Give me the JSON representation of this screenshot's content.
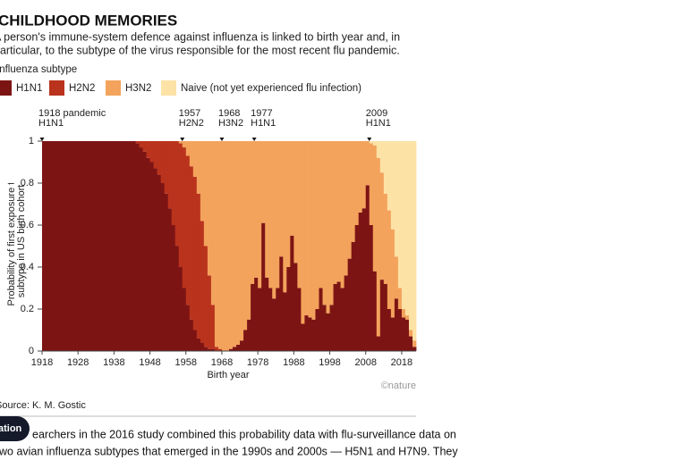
{
  "page": {
    "title": "CHILDHOOD MEMORIES",
    "subtitle": [
      "A person's immune-system defence against influenza is linked to birth year and, in",
      "particular, to the subtype of the virus responsible for the most recent flu pandemic."
    ],
    "legend_title": "Influenza subtype",
    "source": "Source: K. M. Gostic",
    "credit": "©nature",
    "button": "ation",
    "body": [
      "earchers in the 2016 study combined this probability data with flu-surveillance data on",
      "wo avian influenza subtypes that emerged in the 1990s and 2000s — H5N1 and H7N9. They"
    ]
  },
  "chart_data": {
    "type": "stacked-step-area",
    "xlabel": "Birth year",
    "ylabel": [
      "Probability of first exposure to",
      "subtype in US birth cohort"
    ],
    "x": [
      1918,
      1919,
      1920,
      1921,
      1922,
      1923,
      1924,
      1925,
      1926,
      1927,
      1928,
      1929,
      1930,
      1931,
      1932,
      1933,
      1934,
      1935,
      1936,
      1937,
      1938,
      1939,
      1940,
      1941,
      1942,
      1943,
      1944,
      1945,
      1946,
      1947,
      1948,
      1949,
      1950,
      1951,
      1952,
      1953,
      1954,
      1955,
      1956,
      1957,
      1958,
      1959,
      1960,
      1961,
      1962,
      1963,
      1964,
      1965,
      1966,
      1967,
      1968,
      1969,
      1970,
      1971,
      1972,
      1973,
      1974,
      1975,
      1976,
      1977,
      1978,
      1979,
      1980,
      1981,
      1982,
      1983,
      1984,
      1985,
      1986,
      1987,
      1988,
      1989,
      1990,
      1991,
      1992,
      1993,
      1994,
      1995,
      1996,
      1997,
      1998,
      1999,
      2000,
      2001,
      2002,
      2003,
      2004,
      2005,
      2006,
      2007,
      2008,
      2009,
      2010,
      2011,
      2012,
      2013,
      2014,
      2015,
      2016,
      2017,
      2018,
      2019,
      2020,
      2021
    ],
    "series": [
      {
        "name": "H1N1",
        "color": "#7d1414",
        "values": [
          1,
          1,
          1,
          1,
          1,
          1,
          1,
          1,
          1,
          1,
          1,
          1,
          1,
          1,
          1,
          1,
          1,
          1,
          1,
          1,
          1,
          1,
          1,
          1,
          1,
          1,
          0.99,
          0.97,
          0.95,
          0.92,
          0.9,
          0.87,
          0.84,
          0.8,
          0.75,
          0.68,
          0.6,
          0.5,
          0.4,
          0.3,
          0.22,
          0.15,
          0.1,
          0.06,
          0.04,
          0.02,
          0.01,
          0.01,
          0,
          0,
          0,
          0,
          0.01,
          0.02,
          0.03,
          0.05,
          0.1,
          0.15,
          0.32,
          0.35,
          0.3,
          0.61,
          0.35,
          0.3,
          0.25,
          0.3,
          0.45,
          0.28,
          0.4,
          0.55,
          0.42,
          0.3,
          0.13,
          0.17,
          0.16,
          0.15,
          0.2,
          0.3,
          0.22,
          0.18,
          0.22,
          0.32,
          0.33,
          0.3,
          0.36,
          0.44,
          0.52,
          0.6,
          0.66,
          0.68,
          0.79,
          0.6,
          0.38,
          0.07,
          0.34,
          0.32,
          0.2,
          0.16,
          0.25,
          0.2,
          0.16,
          0.15,
          0.07,
          0.02
        ]
      },
      {
        "name": "H2N2",
        "color": "#b9331d",
        "values": [
          0,
          0,
          0,
          0,
          0,
          0,
          0,
          0,
          0,
          0,
          0,
          0,
          0,
          0,
          0,
          0,
          0,
          0,
          0,
          0,
          0,
          0,
          0,
          0,
          0,
          0,
          0.01,
          0.03,
          0.05,
          0.08,
          0.1,
          0.13,
          0.16,
          0.2,
          0.25,
          0.32,
          0.4,
          0.5,
          0.59,
          0.67,
          0.71,
          0.73,
          0.73,
          0.69,
          0.58,
          0.48,
          0.35,
          0.21,
          0.02,
          0.01,
          0,
          0,
          0,
          0,
          0,
          0,
          0,
          0,
          0,
          0,
          0,
          0,
          0,
          0,
          0,
          0,
          0,
          0,
          0,
          0,
          0,
          0,
          0,
          0,
          0,
          0,
          0,
          0,
          0,
          0,
          0,
          0,
          0,
          0,
          0,
          0,
          0,
          0,
          0,
          0,
          0,
          0,
          0,
          0,
          0,
          0,
          0,
          0,
          0,
          0,
          0,
          0,
          0,
          0
        ]
      },
      {
        "name": "H3N2",
        "color": "#f3a35c",
        "values": [
          0,
          0,
          0,
          0,
          0,
          0,
          0,
          0,
          0,
          0,
          0,
          0,
          0,
          0,
          0,
          0,
          0,
          0,
          0,
          0,
          0,
          0,
          0,
          0,
          0,
          0,
          0,
          0,
          0,
          0,
          0,
          0,
          0,
          0,
          0,
          0,
          0,
          0,
          0.01,
          0.03,
          0.07,
          0.12,
          0.17,
          0.25,
          0.38,
          0.5,
          0.64,
          0.78,
          0.98,
          0.99,
          1,
          1,
          0.99,
          0.98,
          0.97,
          0.95,
          0.9,
          0.85,
          0.68,
          0.65,
          0.7,
          0.39,
          0.65,
          0.7,
          0.75,
          0.7,
          0.55,
          0.72,
          0.6,
          0.45,
          0.58,
          0.7,
          0.87,
          0.83,
          0.84,
          0.85,
          0.8,
          0.7,
          0.78,
          0.82,
          0.78,
          0.68,
          0.67,
          0.7,
          0.64,
          0.56,
          0.48,
          0.4,
          0.34,
          0.32,
          0.21,
          0.39,
          0.6,
          0.85,
          0.51,
          0.43,
          0.47,
          0.42,
          0.2,
          0.1,
          0.04,
          0.02,
          0.03,
          0.03
        ]
      },
      {
        "name": "Naive (not yet experienced flu infection)",
        "color": "#fde2a6",
        "values": [
          0,
          0,
          0,
          0,
          0,
          0,
          0,
          0,
          0,
          0,
          0,
          0,
          0,
          0,
          0,
          0,
          0,
          0,
          0,
          0,
          0,
          0,
          0,
          0,
          0,
          0,
          0,
          0,
          0,
          0,
          0,
          0,
          0,
          0,
          0,
          0,
          0,
          0,
          0,
          0,
          0,
          0,
          0,
          0,
          0,
          0,
          0,
          0,
          0,
          0,
          0,
          0,
          0,
          0,
          0,
          0,
          0,
          0,
          0,
          0,
          0,
          0,
          0,
          0,
          0,
          0,
          0,
          0,
          0,
          0,
          0,
          0,
          0,
          0,
          0,
          0,
          0,
          0,
          0,
          0,
          0,
          0,
          0,
          0,
          0,
          0,
          0,
          0,
          0,
          0,
          0,
          0.01,
          0.02,
          0.08,
          0.15,
          0.25,
          0.33,
          0.42,
          0.55,
          0.7,
          0.8,
          0.83,
          0.9,
          0.95
        ]
      }
    ],
    "xlim": [
      1918,
      2022
    ],
    "xticks": [
      1918,
      1928,
      1938,
      1948,
      1958,
      1968,
      1978,
      1988,
      1998,
      2008,
      2018
    ],
    "ylim": [
      0,
      1
    ],
    "yticks": [
      0,
      0.2,
      0.4,
      0.6,
      0.8,
      1
    ],
    "annotations": [
      {
        "x": 1918,
        "text": [
          "1918 pandemic",
          "H1N1"
        ]
      },
      {
        "x": 1957,
        "text": [
          "1957",
          "H2N2"
        ]
      },
      {
        "x": 1968,
        "text": [
          "1968",
          "H3N2"
        ]
      },
      {
        "x": 1977,
        "text": [
          "1977",
          "H1N1"
        ]
      },
      {
        "x": 2009,
        "text": [
          "2009",
          "H1N1"
        ]
      }
    ]
  }
}
